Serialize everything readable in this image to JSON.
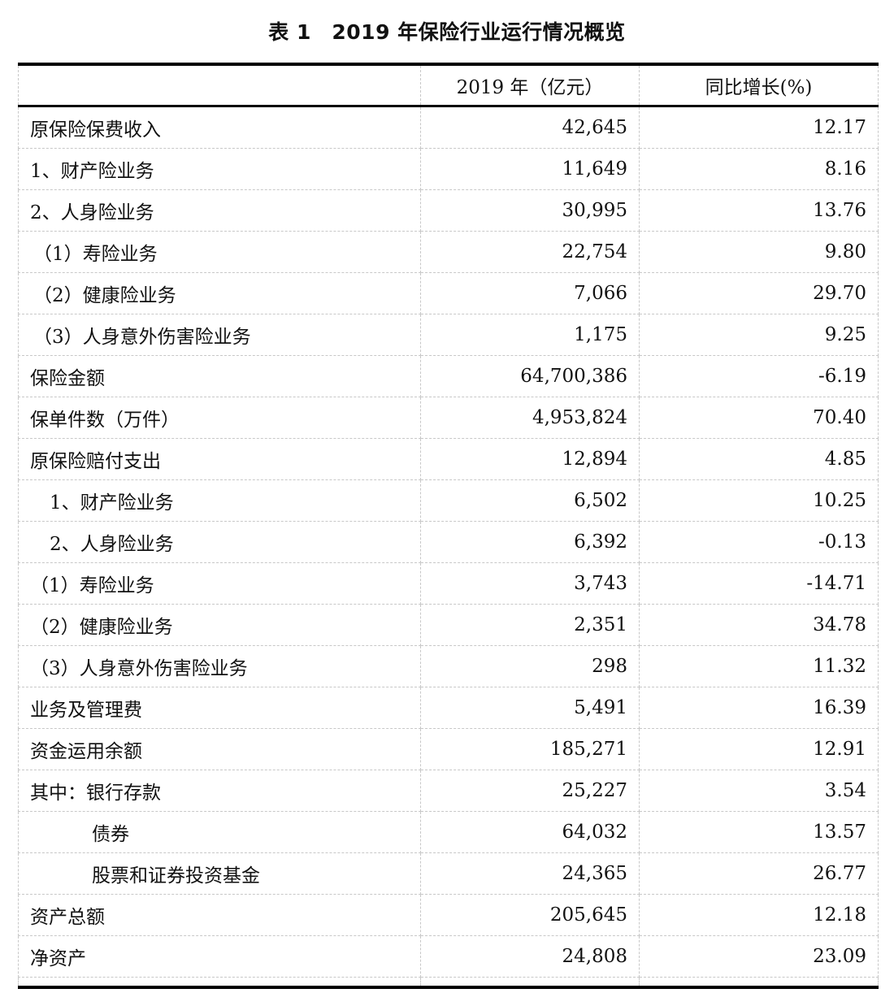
{
  "title": "表 1　2019 年保险行业运行情况概览",
  "header": {
    "col1": "",
    "col2": "2019 年（亿元）",
    "col3": "同比增长(%)"
  },
  "rows": [
    {
      "label": "原保险保费收入",
      "value": "42,645",
      "growth": "12.17"
    },
    {
      "label": "1、财产险业务",
      "value": "11,649",
      "growth": "8.16"
    },
    {
      "label": "2、人身险业务",
      "value": "30,995",
      "growth": "13.76"
    },
    {
      "label": "（1）寿险业务",
      "value": "22,754",
      "growth": "9.80"
    },
    {
      "label": "（2）健康险业务",
      "value": "7,066",
      "growth": "29.70"
    },
    {
      "label": "（3）人身意外伤害险业务",
      "value": "1,175",
      "growth": "9.25"
    },
    {
      "label": "保险金额",
      "value": "64,700,386",
      "growth": "-6.19"
    },
    {
      "label": "保单件数（万件）",
      "value": "4,953,824",
      "growth": "70.40"
    },
    {
      "label": "原保险赔付支出",
      "value": "12,894",
      "growth": "4.85"
    },
    {
      "label": "1、财产险业务",
      "value": "6,502",
      "growth": "10.25"
    },
    {
      "label": "2、人身险业务",
      "value": "6,392",
      "growth": "-0.13"
    },
    {
      "label": "（1）寿险业务",
      "value": "3,743",
      "growth": "-14.71"
    },
    {
      "label": "（2）健康险业务",
      "value": "2,351",
      "growth": "34.78"
    },
    {
      "label": "（3）人身意外伤害险业务",
      "value": "298",
      "growth": "11.32"
    },
    {
      "label": "业务及管理费",
      "value": "5,491",
      "growth": "16.39"
    },
    {
      "label": "资金运用余额",
      "value": "185,271",
      "growth": "12.91"
    },
    {
      "label": "其中：银行存款",
      "value": "25,227",
      "growth": "3.54"
    },
    {
      "label": "债券",
      "value": "64,032",
      "growth": "13.57"
    },
    {
      "label": "股票和证券投资基金",
      "value": "24,365",
      "growth": "26.77"
    },
    {
      "label": "资产总额",
      "value": "205,645",
      "growth": "12.18"
    },
    {
      "label": "净资产",
      "value": "24,808",
      "growth": "23.09"
    }
  ]
}
